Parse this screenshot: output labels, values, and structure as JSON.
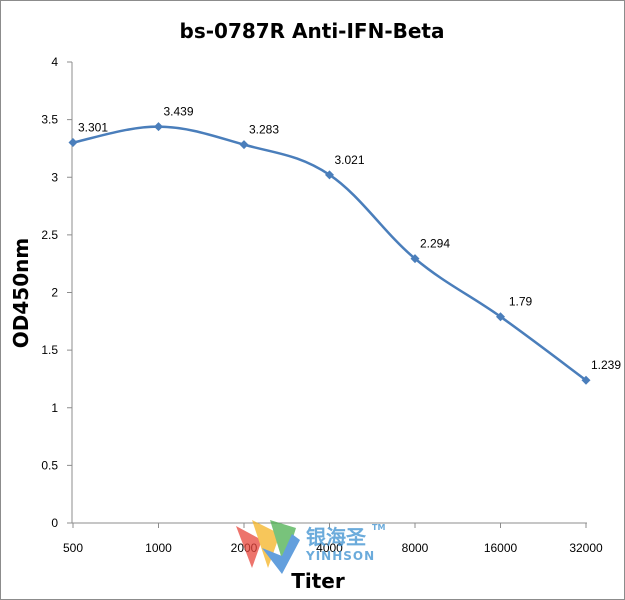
{
  "chart_data": {
    "type": "line",
    "title": "bs-0787R Anti-IFN-Beta",
    "xlabel": "Titer",
    "ylabel": "OD450nm",
    "categories": [
      "500",
      "1000",
      "2000",
      "4000",
      "8000",
      "16000",
      "32000"
    ],
    "series": [
      {
        "values": [
          3.301,
          3.439,
          3.283,
          3.021,
          2.294,
          1.79,
          1.239
        ],
        "labels": [
          "3.301",
          "3.439",
          "3.283",
          "3.021",
          "2.294",
          "1.79",
          "1.239"
        ]
      }
    ],
    "ylim": [
      0,
      4
    ],
    "yticks": [
      "0",
      "0.5",
      "1",
      "1.5",
      "2",
      "2.5",
      "3",
      "3.5",
      "4"
    ],
    "grid": false,
    "legend": "none",
    "line_color": "#4a7ebb"
  },
  "watermark": {
    "name": "银海圣",
    "tm": "TM",
    "sub": "YINHSON",
    "colors": [
      "#e8463c",
      "#f5b324",
      "#4caf50",
      "#2f7fd2"
    ]
  }
}
